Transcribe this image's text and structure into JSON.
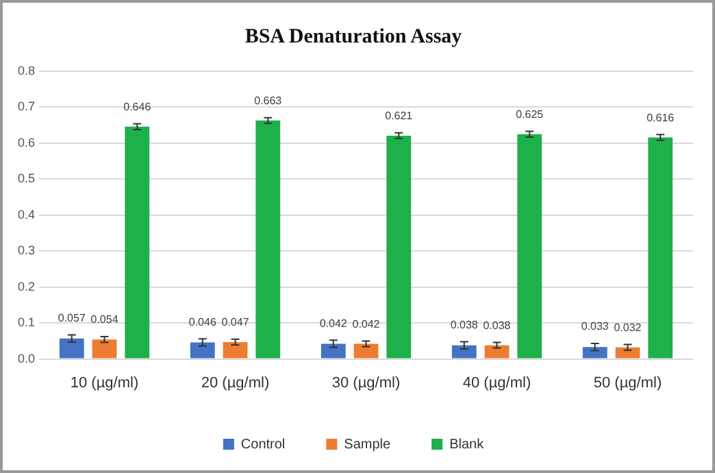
{
  "chart_data": {
    "type": "bar",
    "title": "BSA Denaturation Assay",
    "categories": [
      "10 (µg/ml)",
      "20 (µg/ml)",
      "30 (µg/ml)",
      "40 (µg/ml)",
      "50 (µg/ml)"
    ],
    "series": [
      {
        "name": "Control",
        "color": "#4472c4",
        "values": [
          0.057,
          0.046,
          0.042,
          0.038,
          0.033
        ],
        "errors": [
          0.01,
          0.01,
          0.01,
          0.01,
          0.01
        ]
      },
      {
        "name": "Sample",
        "color": "#ed7d31",
        "values": [
          0.054,
          0.047,
          0.042,
          0.038,
          0.032
        ],
        "errors": [
          0.008,
          0.008,
          0.008,
          0.008,
          0.008
        ]
      },
      {
        "name": "Blank",
        "color": "#1db04b",
        "values": [
          0.646,
          0.663,
          0.621,
          0.625,
          0.616
        ],
        "errors": [
          0.008,
          0.008,
          0.008,
          0.008,
          0.008
        ]
      }
    ],
    "ylim": [
      0,
      0.8
    ],
    "yticks": [
      {
        "value": 0,
        "label": "0.0"
      },
      {
        "value": 0.1,
        "label": "0.1"
      },
      {
        "value": 0.2,
        "label": "0.2"
      },
      {
        "value": 0.3,
        "label": "0.3"
      },
      {
        "value": 0.4,
        "label": "0.4"
      },
      {
        "value": 0.5,
        "label": "0.5"
      },
      {
        "value": 0.6,
        "label": "0.6"
      },
      {
        "value": 0.7,
        "label": "0.7"
      },
      {
        "value": 0.8,
        "label": "0.8"
      }
    ],
    "grid": "y",
    "legend": "bottom",
    "data_labels": true
  }
}
